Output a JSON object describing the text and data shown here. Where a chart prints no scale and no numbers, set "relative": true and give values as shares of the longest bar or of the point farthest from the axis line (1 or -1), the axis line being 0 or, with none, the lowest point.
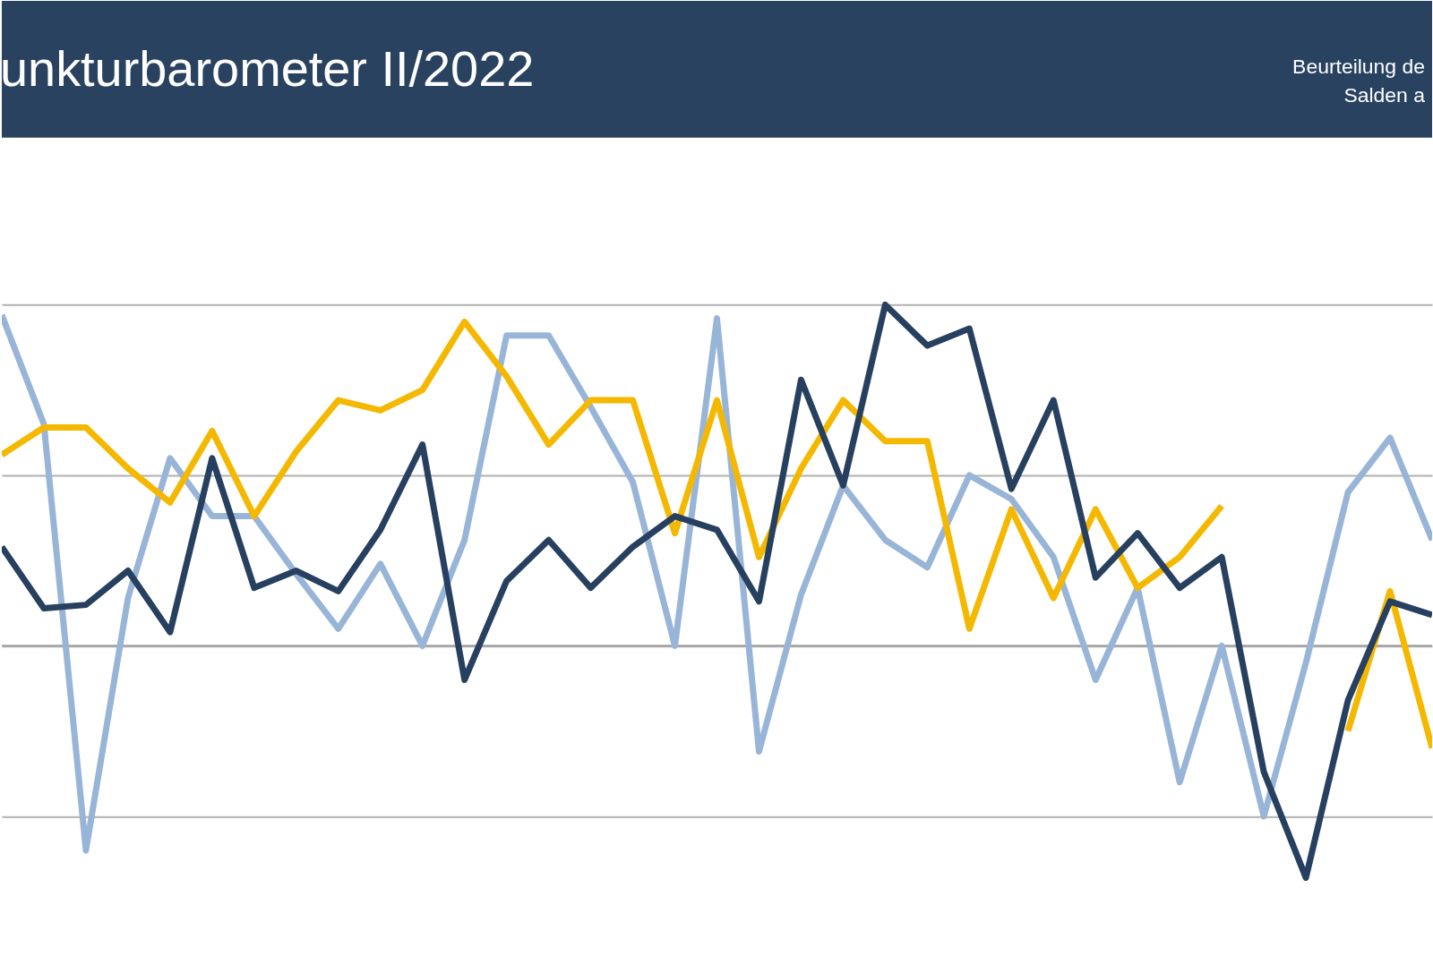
{
  "chart_data": {
    "type": "line",
    "relative": true,
    "title": "unkturbarometer II/2022",
    "subtitle": [
      "Beurteilung de",
      "Salden a"
    ],
    "grid": "y",
    "line_style": "solid",
    "marker": "none",
    "legend": false,
    "categories": [
      null,
      null,
      null,
      null,
      null,
      null,
      null,
      null,
      null,
      null,
      null,
      null,
      null,
      null,
      null,
      null,
      null,
      null,
      null,
      null,
      null,
      null,
      null,
      null,
      null,
      null,
      null,
      null,
      null,
      null,
      null,
      null,
      null,
      null,
      null
    ],
    "series": [
      {
        "color": "#98b5d8",
        "values": [
          0.97,
          0.65,
          -0.6,
          0.14,
          0.55,
          0.38,
          0.38,
          0.21,
          0.05,
          0.24,
          0,
          0.31,
          0.91,
          0.91,
          0.7,
          0.48,
          0,
          0.96,
          -0.31,
          0.15,
          0.47,
          0.31,
          0.23,
          0.5,
          0.43,
          0.26,
          -0.1,
          0.17,
          -0.4,
          0,
          -0.5,
          -0.05,
          0.45,
          0.61,
          0.31
        ]
      },
      {
        "color": "#f5b800",
        "values": [
          0.56,
          0.64,
          0.64,
          0.52,
          0.42,
          0.63,
          0.38,
          0.57,
          0.72,
          0.69,
          0.75,
          0.95,
          0.79,
          0.59,
          0.72,
          0.72,
          0.33,
          0.72,
          0.26,
          0.52,
          0.72,
          0.6,
          0.6,
          0.05,
          0.4,
          0.14,
          0.4,
          0.17,
          0.26,
          0.41,
          null,
          null,
          -0.25,
          0.16,
          -0.3
        ]
      },
      {
        "color": "#27405f",
        "values": [
          0.29,
          0.11,
          0.12,
          0.22,
          0.04,
          0.55,
          0.17,
          0.22,
          0.16,
          0.34,
          0.59,
          -0.1,
          0.19,
          0.31,
          0.17,
          0.29,
          0.38,
          0.34,
          0.13,
          0.78,
          0.47,
          1.0,
          0.88,
          0.93,
          0.46,
          0.72,
          0.2,
          0.33,
          0.17,
          0.26,
          -0.37,
          -0.68,
          -0.16,
          0.13,
          0.09
        ]
      }
    ]
  }
}
